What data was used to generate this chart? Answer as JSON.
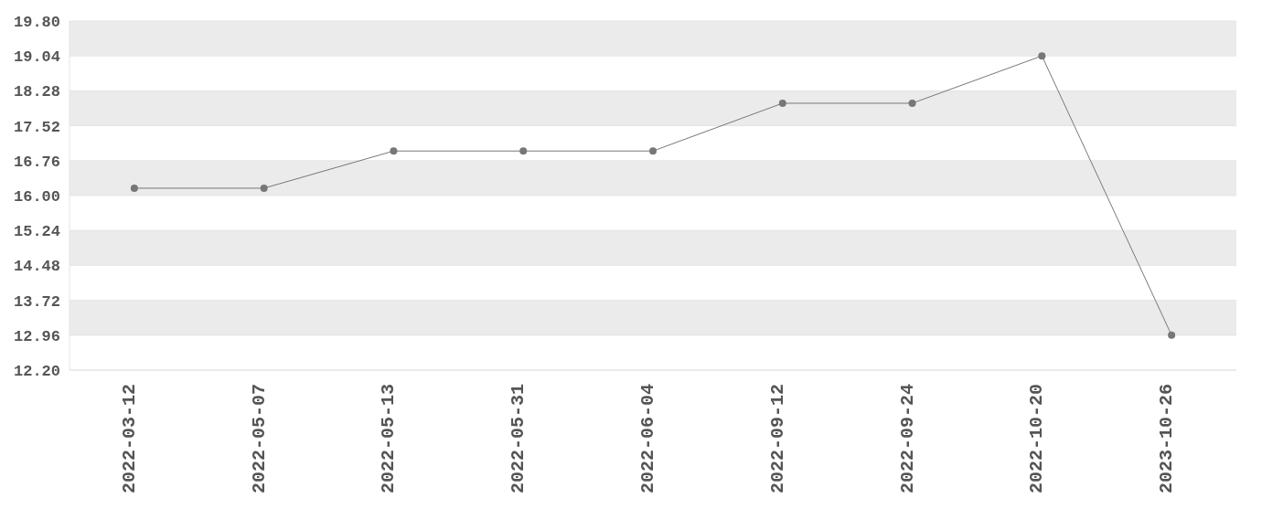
{
  "chart_data": {
    "type": "line",
    "categories": [
      "2022-03-12",
      "2022-05-07",
      "2022-05-13",
      "2022-05-31",
      "2022-06-04",
      "2022-09-12",
      "2022-09-24",
      "2022-10-20",
      "2023-10-26"
    ],
    "series": [
      {
        "color": "#777777",
        "values": [
          16.16,
          16.16,
          16.97,
          16.97,
          16.97,
          18.01,
          18.01,
          19.04,
          12.96
        ]
      }
    ],
    "ylim": [
      12.2,
      19.8
    ],
    "yticks": [
      {
        "value": 12.2,
        "label": "12.20"
      },
      {
        "value": 12.96,
        "label": "12.96"
      },
      {
        "value": 13.72,
        "label": "13.72"
      },
      {
        "value": 14.48,
        "label": "14.48"
      },
      {
        "value": 15.24,
        "label": "15.24"
      },
      {
        "value": 16,
        "label": "16.00"
      },
      {
        "value": 16.76,
        "label": "16.76"
      },
      {
        "value": 17.52,
        "label": "17.52"
      },
      {
        "value": 18.28,
        "label": "18.28"
      },
      {
        "value": 19.04,
        "label": "19.04"
      },
      {
        "value": 19.8,
        "label": "19.80"
      }
    ],
    "grid": "y",
    "marker": "circle",
    "line_style": "solid",
    "legend": false
  }
}
